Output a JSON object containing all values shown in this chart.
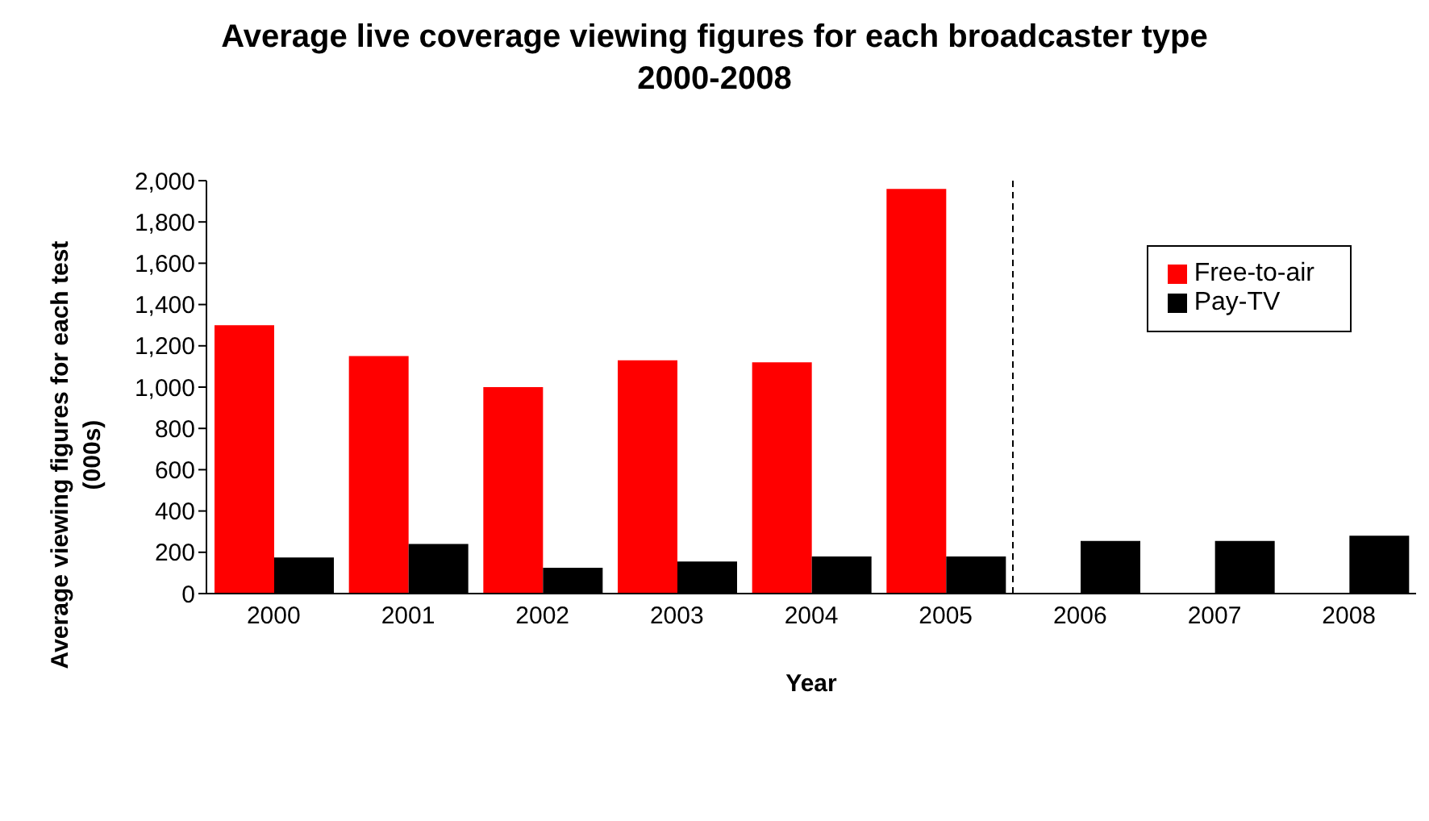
{
  "chart_data": {
    "type": "bar",
    "title": "Average live coverage viewing figures for each broadcaster type 2000-2008",
    "xlabel": "Year",
    "ylabel": "Average viewing figures for each test (000s)",
    "x": [
      2000,
      2001,
      2002,
      2003,
      2004,
      2005,
      2006,
      2007,
      2008
    ],
    "xlim": [
      1999.5,
      2008.5
    ],
    "xticks": [
      2000,
      2001,
      2002,
      2003,
      2004,
      2005,
      2006,
      2007,
      2008
    ],
    "ylim": [
      0,
      2000
    ],
    "yticks": [
      0,
      200,
      400,
      600,
      800,
      {
        "value": 1000,
        "label": "1,000"
      },
      {
        "value": 1200,
        "label": "1,200"
      },
      {
        "value": 1400,
        "label": "1,400"
      },
      {
        "value": 1600,
        "label": "1,600"
      },
      {
        "value": 1800,
        "label": "1,800"
      },
      {
        "value": 2000,
        "label": "2,000"
      }
    ],
    "series": [
      {
        "name": "Free-to-air",
        "color": "#ff0000",
        "values": [
          1300,
          1150,
          1000,
          1130,
          1120,
          1960,
          null,
          null,
          null
        ]
      },
      {
        "name": "Pay-TV",
        "color": "#000000",
        "values": [
          175,
          240,
          125,
          155,
          180,
          180,
          255,
          255,
          280
        ]
      }
    ],
    "ref_lines": [
      {
        "axis": "x",
        "value": 2005.5,
        "line_style": "dashed",
        "color": "#000000"
      }
    ],
    "grid": false,
    "legend": "top right"
  }
}
